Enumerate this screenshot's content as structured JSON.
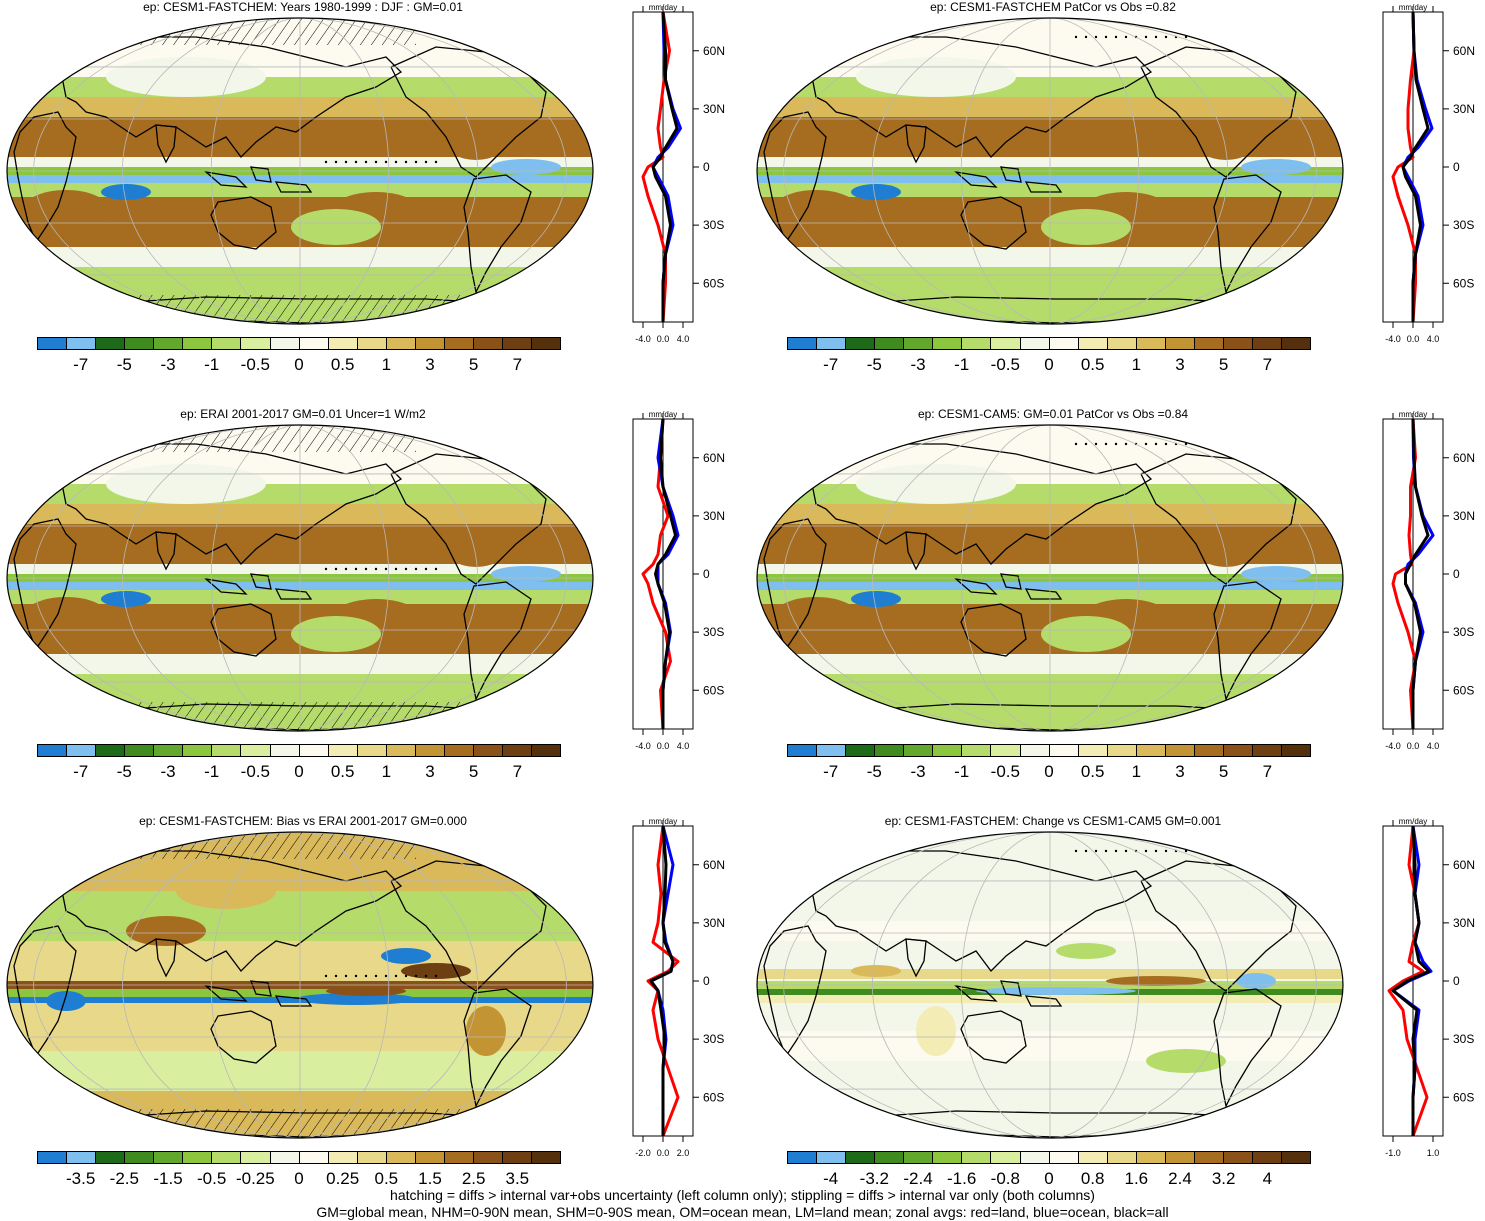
{
  "colors": {
    "colorbar": [
      "#1f7ed1",
      "#7fbff0",
      "#1d6b18",
      "#3f8b1f",
      "#62a82c",
      "#8cc63f",
      "#b5dc6a",
      "#d9ee9f",
      "#f3f7ea",
      "#fdfaf0",
      "#f3ecb4",
      "#e8d88a",
      "#d9b95a",
      "#c39433",
      "#a66d20",
      "#8a5218",
      "#6e3f12",
      "#54300d"
    ],
    "ocean_land_all": [
      "#ff0000",
      "#0000ff",
      "#000000"
    ]
  },
  "panels": [
    {
      "id": "p1",
      "title": "ep: CESM1-FASTCHEM: Years 1980-1999 : DJF : GM=0.01",
      "cb_labels": [
        "-7",
        "-5",
        "-3",
        "-1",
        "-0.5",
        "0",
        "0.5",
        "1",
        "3",
        "5",
        "7"
      ],
      "zonal_ticks": [
        "-4.0",
        "0.0",
        "4.0"
      ],
      "variant": "full",
      "hatch": true
    },
    {
      "id": "p2",
      "title": "ep: CESM1-FASTCHEM PatCor vs Obs =0.82",
      "cb_labels": [
        "-7",
        "-5",
        "-3",
        "-1",
        "-0.5",
        "0",
        "0.5",
        "1",
        "3",
        "5",
        "7"
      ],
      "zonal_ticks": [
        "-4.0",
        "0.0",
        "4.0"
      ],
      "variant": "full",
      "hatch": false
    },
    {
      "id": "p3",
      "title": "ep: ERAI 2001-2017 GM=0.01 Uncer=1 W/m2",
      "cb_labels": [
        "-7",
        "-5",
        "-3",
        "-1",
        "-0.5",
        "0",
        "0.5",
        "1",
        "3",
        "5",
        "7"
      ],
      "zonal_ticks": [
        "-4.0",
        "0.0",
        "4.0"
      ],
      "variant": "full",
      "hatch": true
    },
    {
      "id": "p4",
      "title": "ep: CESM1-CAM5: GM=0.01 PatCor vs Obs =0.84",
      "cb_labels": [
        "-7",
        "-5",
        "-3",
        "-1",
        "-0.5",
        "0",
        "0.5",
        "1",
        "3",
        "5",
        "7"
      ],
      "zonal_ticks": [
        "-4.0",
        "0.0",
        "4.0"
      ],
      "variant": "full",
      "hatch": false
    },
    {
      "id": "p5",
      "title": "ep: CESM1-FASTCHEM: Bias vs ERAI 2001-2017 GM=0.000",
      "cb_labels": [
        "-3.5",
        "-2.5",
        "-1.5",
        "-0.5",
        "-0.25",
        "0",
        "0.25",
        "0.5",
        "1.5",
        "2.5",
        "3.5"
      ],
      "zonal_ticks": [
        "-2.0",
        "0.0",
        "2.0"
      ],
      "variant": "bias",
      "hatch": true
    },
    {
      "id": "p6",
      "title": "ep: CESM1-FASTCHEM: Change vs CESM1-CAM5 GM=0.001",
      "cb_labels": [
        "-4",
        "-3.2",
        "-2.4",
        "-1.6",
        "-0.8",
        "0",
        "0.8",
        "1.6",
        "2.4",
        "3.2",
        "4"
      ],
      "zonal_ticks": [
        "-1.0",
        "1.0"
      ],
      "variant": "change",
      "hatch": false
    }
  ],
  "zonal_unit": "mm/day",
  "lat_labels": [
    "60N",
    "30N",
    "0",
    "30S",
    "60S"
  ],
  "footer": {
    "line1": "hatching = diffs > internal var+obs uncertainty (left column only); stippling = diffs > internal var only (both columns)",
    "line2": "GM=global mean, NHM=0-90N mean, SHM=0-90S mean, OM=ocean mean, LM=land mean; zonal avgs: red=land, blue=ocean, black=all"
  },
  "chart_data": [
    {
      "type": "heatmap",
      "title": "ep: CESM1-FASTCHEM: Years 1980-1999 : DJF : GM=0.01",
      "colorbar_levels": [
        -7,
        -5,
        -3,
        -1,
        -0.5,
        0,
        0.5,
        1,
        3,
        5,
        7
      ],
      "zonal_mean": {
        "unit": "mm/day",
        "xlim": [
          -6,
          6
        ],
        "lat": [
          80,
          60,
          45,
          30,
          20,
          10,
          5,
          0,
          -5,
          -15,
          -30,
          -45,
          -60,
          -80
        ],
        "land": [
          0,
          1.3,
          0.2,
          -0.5,
          -1,
          -0.5,
          0,
          -3,
          -4,
          -3,
          -1,
          0.5,
          0.5,
          0
        ],
        "ocean": [
          0,
          0.2,
          0.5,
          2,
          3.5,
          1,
          -1,
          -2,
          -1,
          1,
          2,
          0.5,
          0,
          0
        ],
        "all": [
          0,
          0.5,
          0.5,
          1.8,
          2.8,
          0.5,
          -0.5,
          -2,
          -1.5,
          0.5,
          1.5,
          0.5,
          0,
          0
        ]
      },
      "zonal_xticks": [
        -4.0,
        0.0,
        4.0
      ]
    },
    {
      "type": "heatmap",
      "title": "ep: CESM1-FASTCHEM PatCor vs Obs =0.82",
      "colorbar_levels": [
        -7,
        -5,
        -3,
        -1,
        -0.5,
        0,
        0.5,
        1,
        3,
        5,
        7
      ],
      "zonal_mean": {
        "unit": "mm/day",
        "xlim": [
          -6,
          6
        ],
        "lat": [
          80,
          60,
          45,
          30,
          20,
          10,
          5,
          0,
          -5,
          -15,
          -30,
          -45,
          -60,
          -80
        ],
        "land": [
          0,
          0.2,
          -0.5,
          -1,
          -1,
          -0.5,
          0,
          -3,
          -4,
          -3,
          -1,
          0.5,
          0.5,
          0
        ],
        "ocean": [
          0,
          0.2,
          0.8,
          2.5,
          3.8,
          1,
          -1,
          -2,
          -1,
          1,
          2,
          0.5,
          0,
          0
        ],
        "all": [
          0,
          0.2,
          0.6,
          2,
          3,
          0.5,
          -0.5,
          -2,
          -1.5,
          0.5,
          1.5,
          0.5,
          0,
          0
        ]
      },
      "zonal_xticks": [
        -4.0,
        0.0,
        4.0
      ]
    },
    {
      "type": "heatmap",
      "title": "ep: ERAI 2001-2017 GM=0.01 Uncer=1 W/m2",
      "colorbar_levels": [
        -7,
        -5,
        -3,
        -1,
        -0.5,
        0,
        0.5,
        1,
        3,
        5,
        7
      ],
      "zonal_mean": {
        "unit": "mm/day",
        "xlim": [
          -6,
          6
        ],
        "lat": [
          80,
          60,
          45,
          30,
          20,
          10,
          5,
          0,
          -5,
          -15,
          -30,
          -45,
          -60,
          -80
        ],
        "land": [
          0,
          -0.5,
          -1,
          1,
          -0.5,
          -1,
          -2,
          -4,
          -3,
          -2,
          0.5,
          1.5,
          -0.5,
          0
        ],
        "ocean": [
          0,
          -1,
          0,
          2,
          3,
          1,
          -1,
          -1,
          -1,
          0.5,
          1.5,
          0.5,
          0,
          0
        ],
        "all": [
          0,
          -0.5,
          0,
          1.5,
          2.5,
          0.5,
          -1,
          -1.5,
          -1,
          0.3,
          1.3,
          0.5,
          0,
          0
        ]
      },
      "zonal_xticks": [
        -4.0,
        0.0,
        4.0
      ]
    },
    {
      "type": "heatmap",
      "title": "ep: CESM1-CAM5: GM=0.01 PatCor vs Obs =0.84",
      "colorbar_levels": [
        -7,
        -5,
        -3,
        -1,
        -0.5,
        0,
        0.5,
        1,
        3,
        5,
        7
      ],
      "zonal_mean": {
        "unit": "mm/day",
        "xlim": [
          -6,
          6
        ],
        "lat": [
          80,
          60,
          45,
          30,
          20,
          10,
          5,
          0,
          -5,
          -15,
          -30,
          -45,
          -60,
          -80
        ],
        "land": [
          0,
          0.5,
          -0.5,
          -0.5,
          -0.8,
          -0.5,
          -0.2,
          -3.5,
          -4,
          -3,
          -1,
          0.5,
          -0.5,
          0
        ],
        "ocean": [
          0,
          0.1,
          0.5,
          2,
          4,
          1,
          -1,
          -1.5,
          -1.5,
          0.5,
          2,
          0.5,
          0,
          0
        ],
        "all": [
          0,
          0.2,
          0.5,
          1.8,
          3,
          0.5,
          -0.5,
          -1.5,
          -1.5,
          0.3,
          1.5,
          0.5,
          0,
          0
        ]
      },
      "zonal_xticks": [
        -4.0,
        0.0,
        4.0
      ]
    },
    {
      "type": "heatmap",
      "title": "ep: CESM1-FASTCHEM: Bias vs ERAI 2001-2017 GM=0.000",
      "colorbar_levels": [
        -3.5,
        -2.5,
        -1.5,
        -0.5,
        -0.25,
        0,
        0.25,
        0.5,
        1.5,
        2.5,
        3.5
      ],
      "zonal_mean": {
        "unit": "mm/day",
        "xlim": [
          -3,
          3
        ],
        "lat": [
          80,
          60,
          45,
          30,
          20,
          10,
          5,
          0,
          -5,
          -15,
          -30,
          -45,
          -60,
          -80
        ],
        "land": [
          0,
          -0.5,
          -0.2,
          -0.5,
          -1,
          1.5,
          0.5,
          -1.5,
          -0.5,
          -1,
          -0.5,
          0.5,
          1.5,
          0
        ],
        "ocean": [
          0,
          1,
          0.5,
          0,
          0.3,
          1,
          0.8,
          -1.2,
          -0.5,
          0,
          0.3,
          0,
          0,
          0
        ],
        "all": [
          0,
          0.3,
          0.2,
          0,
          0.2,
          1,
          0.8,
          -1.2,
          -0.5,
          -0.2,
          0.2,
          0,
          0,
          0
        ]
      },
      "zonal_xticks": [
        -2.0,
        0.0,
        2.0
      ]
    },
    {
      "type": "heatmap",
      "title": "ep: CESM1-FASTCHEM: Change vs CESM1-CAM5 GM=0.001",
      "colorbar_levels": [
        -4,
        -3.2,
        -2.4,
        -1.6,
        -0.8,
        0,
        0.8,
        1.6,
        2.4,
        3.2,
        4
      ],
      "zonal_mean": {
        "unit": "mm/day",
        "xlim": [
          -1.5,
          1.5
        ],
        "lat": [
          80,
          60,
          45,
          30,
          20,
          10,
          5,
          0,
          -5,
          -15,
          -30,
          -45,
          -60,
          -80
        ],
        "land": [
          0,
          -0.2,
          0.1,
          0.3,
          0,
          -0.2,
          0.5,
          -0.5,
          -1.2,
          -0.5,
          -0.3,
          0.2,
          0.7,
          0
        ],
        "ocean": [
          0,
          0.3,
          0.1,
          0.3,
          0.1,
          0.5,
          0.9,
          -0.2,
          -1,
          0.3,
          0.1,
          0.1,
          0,
          0
        ],
        "all": [
          0,
          0.1,
          0.1,
          0.3,
          0.1,
          0.3,
          0.8,
          -0.3,
          -1,
          0.2,
          0,
          0.1,
          0,
          0
        ]
      },
      "zonal_xticks": [
        -1.0,
        1.0
      ]
    }
  ]
}
